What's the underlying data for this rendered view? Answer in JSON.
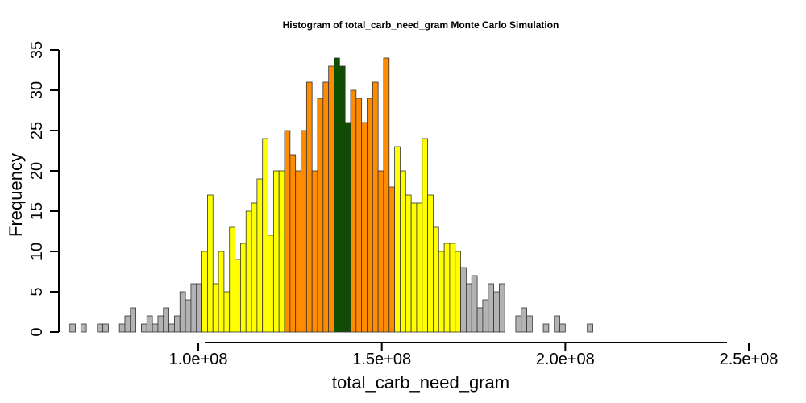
{
  "chart_data": {
    "type": "bar",
    "title": "Histogram of  total_carb_need_gram  Monte Carlo Simulation",
    "xlabel": "total_carb_need_gram",
    "ylabel": "Frequency",
    "xlim": [
      62000000,
      259000000
    ],
    "ylim": [
      0,
      35
    ],
    "bin_start": 65000000,
    "bin_width": 1500000,
    "x_ticks": [
      100000000,
      150000000,
      200000000,
      250000000
    ],
    "x_tick_labels": [
      "1.0e+08",
      "1.5e+08",
      "2.0e+08",
      "2.5e+08"
    ],
    "y_ticks": [
      0,
      5,
      10,
      15,
      20,
      25,
      30,
      35
    ],
    "y_tick_labels": [
      "0",
      "5",
      "10",
      "15",
      "20",
      "25",
      "30",
      "35"
    ],
    "colors": {
      "tail": "#b3b3b3",
      "outer": "#ffff00",
      "inner": "#ff8c00",
      "center": "#0f4d00"
    },
    "values": [
      1,
      0,
      1,
      0,
      0,
      1,
      1,
      0,
      0,
      1,
      2,
      3,
      0,
      1,
      2,
      1,
      2,
      3,
      1,
      2,
      5,
      4,
      6,
      6,
      10,
      17,
      6,
      10,
      5,
      13,
      9,
      11,
      15,
      16,
      19,
      24,
      12,
      20,
      20,
      25,
      22,
      20,
      25,
      31,
      20,
      29,
      31,
      33,
      34,
      33,
      26,
      30,
      29,
      26,
      29,
      31,
      20,
      34,
      18,
      23,
      20,
      17,
      16,
      16,
      24,
      17,
      13,
      10,
      11,
      11,
      10,
      8,
      6,
      7,
      3,
      4,
      6,
      5,
      6,
      0,
      0,
      2,
      3,
      2,
      0,
      0,
      1,
      0,
      2,
      1,
      0,
      0,
      0,
      0,
      1
    ],
    "color_groups": [
      "tail",
      "tail",
      "tail",
      "tail",
      "tail",
      "tail",
      "tail",
      "tail",
      "tail",
      "tail",
      "tail",
      "tail",
      "tail",
      "tail",
      "tail",
      "tail",
      "tail",
      "tail",
      "tail",
      "tail",
      "tail",
      "tail",
      "tail",
      "tail",
      "outer",
      "outer",
      "outer",
      "outer",
      "outer",
      "outer",
      "outer",
      "outer",
      "outer",
      "outer",
      "outer",
      "outer",
      "outer",
      "outer",
      "outer",
      "inner",
      "inner",
      "inner",
      "inner",
      "inner",
      "inner",
      "inner",
      "inner",
      "inner",
      "center",
      "center",
      "center",
      "inner",
      "inner",
      "inner",
      "inner",
      "inner",
      "inner",
      "inner",
      "inner",
      "outer",
      "outer",
      "outer",
      "outer",
      "outer",
      "outer",
      "outer",
      "outer",
      "outer",
      "outer",
      "outer",
      "outer",
      "tail",
      "tail",
      "tail",
      "tail",
      "tail",
      "tail",
      "tail",
      "tail",
      "tail",
      "tail",
      "tail",
      "tail",
      "tail",
      "tail",
      "tail",
      "tail",
      "tail",
      "tail",
      "tail",
      "tail",
      "tail",
      "tail",
      "tail",
      "tail"
    ]
  }
}
